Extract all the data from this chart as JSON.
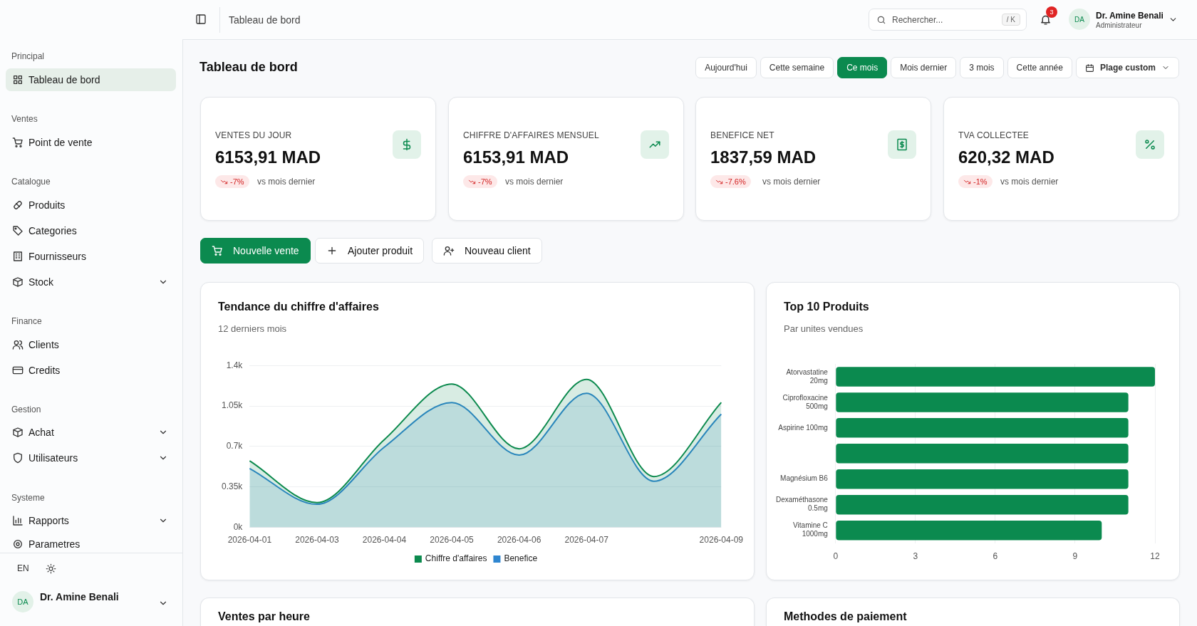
{
  "chart_data": [
    {
      "type": "other",
      "annotations": [
        "Principal",
        "Tableau de bord",
        "Ventes",
        "Point de vente",
        "Catalogue",
        "Produits",
        "Categories",
        "Fournisseurs",
        "Stock",
        "Finance",
        "Clients",
        "Credits",
        "Gestion",
        "Achat",
        "Utilisateurs",
        "Systeme",
        "Rapports",
        "Parametres",
        "EN",
        "DA",
        "Dr. Amine Benali"
      ]
    },
    {
      "type": "other",
      "title": "Tableau de bord",
      "annotations": [
        "Tableau de bord",
        "Rechercher...",
        "/ K",
        "3",
        "DA",
        "Dr. Amine Benali",
        "Administrateur",
        "Aujourd'hui",
        "Cette semaine",
        "Ce mois",
        "Mois dernier",
        "3 mois",
        "Cette année",
        "Plage custom"
      ]
    },
    {
      "type": "other",
      "annotations": [
        "VENTES DU JOUR",
        "6153,91 MAD",
        "-7%",
        "vs mois dernier",
        "CHIFFRE D'AFFAIRES MENSUEL",
        "6153,91 MAD",
        "-7%",
        "vs mois dernier",
        "BENEFICE NET",
        "1837,59 MAD",
        "-7.6%",
        "vs mois dernier",
        "TVA COLLECTEE",
        "620,32 MAD",
        "-1%",
        "vs mois dernier",
        "Nouvelle vente",
        "Ajouter produit",
        "Nouveau client"
      ]
    },
    {
      "type": "area",
      "title": "Tendance du chiffre d'affaires",
      "subtitle": "12 derniers mois",
      "categories": [
        "2026-04-01",
        "2026-04-03",
        "2026-04-04",
        "2026-04-05",
        "2026-04-06",
        "2026-04-07",
        null,
        "2026-04-09"
      ],
      "series": [
        {
          "name": "Chiffre d'affaires",
          "color": "#0c8a4e",
          "values": [
            575,
            215,
            760,
            1240,
            680,
            1280,
            440,
            1080
          ]
        },
        {
          "name": "Benefice",
          "color": "#2f86d0",
          "values": [
            510,
            200,
            695,
            1080,
            625,
            1160,
            400,
            980
          ]
        }
      ],
      "ylim": [
        0,
        1400
      ],
      "yticks": [
        {
          "value": 0,
          "label": "0k"
        },
        {
          "value": 350,
          "label": "0.35k"
        },
        {
          "value": 700,
          "label": "0.7k"
        },
        {
          "value": 1050,
          "label": "1.05k"
        },
        {
          "value": 1400,
          "label": "1.4k"
        }
      ],
      "grid": "y",
      "legend": "bottom",
      "marker": "none"
    },
    {
      "type": "bar",
      "orientation": "horizontal",
      "title": "Top 10 Produits",
      "subtitle": "Par unites vendues",
      "categories": [
        "Atorvastatine 20mg",
        "Ciprofloxacine 500mg",
        "Aspirine 100mg",
        null,
        "Magnésium B6",
        "Dexaméthasone 0.5mg",
        "Vitamine C 1000mg"
      ],
      "values": [
        12,
        11,
        11,
        11,
        11,
        11,
        10
      ],
      "color": "#0b8a4f",
      "xlim": [
        0,
        12
      ],
      "xticks": [
        0,
        3,
        6,
        9,
        12
      ],
      "grid": "x"
    },
    {
      "type": "other",
      "title": "Ventes par heure"
    },
    {
      "type": "other",
      "title": "Methodes de paiement"
    }
  ]
}
